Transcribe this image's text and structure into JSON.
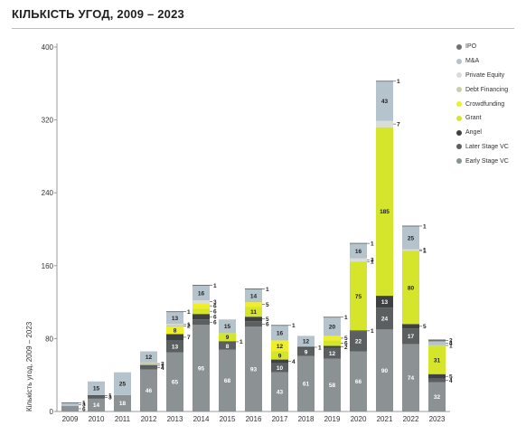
{
  "title": "КІЛЬКІСТЬ УГОД, 2009 – 2023",
  "chart_data": {
    "type": "bar",
    "stacked": true,
    "ylabel": "Кількість угод, 2009 – 2023",
    "ylim": [
      0,
      400
    ],
    "yticks": [
      0,
      80,
      160,
      240,
      320,
      400
    ],
    "grid": false,
    "legend_position": "right",
    "categories": [
      "2009",
      "2010",
      "2011",
      "2012",
      "2013",
      "2014",
      "2015",
      "2016",
      "2017",
      "2018",
      "2019",
      "2020",
      "2021",
      "2022",
      "2023"
    ],
    "series": [
      {
        "name": "Early Stage VC",
        "color": "#8c9193",
        "values": [
          6,
          14,
          18,
          46,
          65,
          95,
          68,
          93,
          43,
          61,
          58,
          66,
          90,
          74,
          32
        ]
      },
      {
        "name": "Later Stage VC",
        "color": "#5b5f60",
        "values": [
          0,
          3,
          0,
          4,
          13,
          6,
          8,
          6,
          10,
          9,
          12,
          22,
          24,
          17,
          4
        ]
      },
      {
        "name": "Angel",
        "color": "#3d4142",
        "values": [
          0,
          1,
          0,
          1,
          7,
          6,
          1,
          5,
          4,
          1,
          2,
          1,
          13,
          5,
          5
        ]
      },
      {
        "name": "Grant",
        "color": "#d4e52c",
        "values": [
          0,
          0,
          0,
          0,
          0,
          6,
          9,
          11,
          9,
          0,
          6,
          75,
          185,
          80,
          31
        ]
      },
      {
        "name": "Crowdfunding",
        "color": "#eeee2a",
        "values": [
          0,
          0,
          0,
          0,
          8,
          6,
          0,
          5,
          12,
          0,
          5,
          0,
          0,
          0,
          0
        ]
      },
      {
        "name": "Debt Financing",
        "color": "#c8cfa8",
        "values": [
          0,
          0,
          0,
          3,
          2,
          0,
          0,
          0,
          0,
          0,
          0,
          1,
          0,
          1,
          1
        ]
      },
      {
        "name": "Private Equity",
        "color": "#d8dcdd",
        "values": [
          0,
          0,
          0,
          0,
          1,
          3,
          0,
          0,
          0,
          0,
          0,
          3,
          7,
          1,
          0
        ]
      },
      {
        "name": "M&A",
        "color": "#b4c3cc",
        "values": [
          3,
          15,
          25,
          12,
          13,
          16,
          15,
          14,
          16,
          12,
          20,
          16,
          43,
          25,
          4
        ]
      },
      {
        "name": "IPO",
        "color": "#6d7274",
        "values": [
          1,
          0,
          0,
          0,
          1,
          1,
          0,
          1,
          1,
          0,
          1,
          1,
          1,
          1,
          2
        ]
      }
    ]
  }
}
